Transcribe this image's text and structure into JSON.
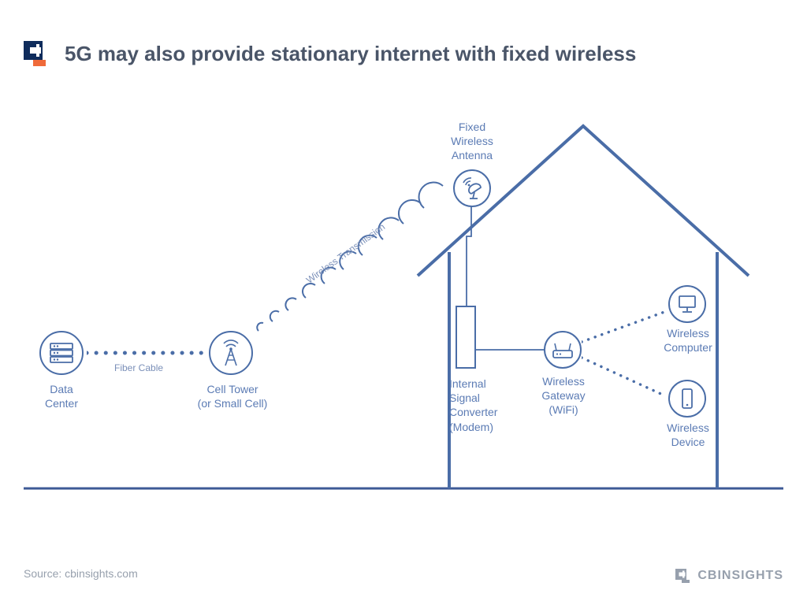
{
  "title": "5G may also provide stationary internet with fixed wireless",
  "source": "Source: cbinsights.com",
  "brand_footer": "CBINSIGHTS",
  "colors": {
    "line": "#4a6da7",
    "label": "#5b7bb4",
    "edge_label": "#7a8fb8",
    "ground": "#3d5a96",
    "title": "#4a5568",
    "footer_gray": "#97a0ad",
    "logo_navy": "#0f2c5c",
    "logo_orange": "#ef6a3a"
  },
  "nodes": {
    "data_center": {
      "label": "Data\nCenter"
    },
    "cell_tower": {
      "label": "Cell Tower\n(or Small Cell)"
    },
    "antenna": {
      "label": "Fixed\nWireless\nAntenna"
    },
    "modem": {
      "label": "Internal\nSignal\nConverter\n(Modem)"
    },
    "gateway": {
      "label": "Wireless\nGateway\n(WiFi)"
    },
    "computer": {
      "label": "Wireless\nComputer"
    },
    "device": {
      "label": "Wireless\nDevice"
    }
  },
  "edges": {
    "fiber": {
      "label": "Fiber Cable"
    },
    "wireless": {
      "label": "Wireless Transmission"
    }
  }
}
